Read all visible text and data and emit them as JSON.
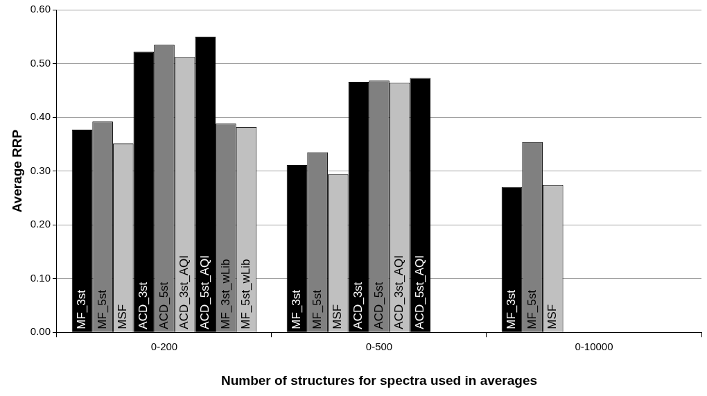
{
  "chart_data": {
    "type": "bar",
    "xlabel": "Number of structures for spectra used in averages",
    "ylabel": "Average RRP",
    "categories": [
      "0-200",
      "0-500",
      "0-10000"
    ],
    "series": [
      {
        "name": "MF_3st",
        "color": "#000000",
        "values": [
          0.377,
          0.311,
          0.27
        ]
      },
      {
        "name": "MF_5st",
        "color": "#808080",
        "values": [
          0.392,
          0.335,
          0.354
        ]
      },
      {
        "name": "MSF",
        "color": "#c0c0c0",
        "values": [
          0.351,
          0.294,
          0.274
        ]
      },
      {
        "name": "ACD_3st",
        "color": "#000000",
        "values": [
          0.522,
          0.466,
          null
        ]
      },
      {
        "name": "ACD_5st",
        "color": "#808080",
        "values": [
          0.535,
          0.468,
          null
        ]
      },
      {
        "name": "ACD_3st_AQI",
        "color": "#c0c0c0",
        "values": [
          0.512,
          0.464,
          null
        ]
      },
      {
        "name": "ACD_5st_AQI",
        "color": "#000000",
        "values": [
          0.55,
          0.473,
          null
        ]
      },
      {
        "name": "MF_3st_wLib",
        "color": "#808080",
        "values": [
          0.388,
          null,
          null
        ]
      },
      {
        "name": "MF_5st_wLib",
        "color": "#c0c0c0",
        "values": [
          0.382,
          null,
          null
        ]
      }
    ],
    "ylim": [
      0,
      0.6
    ],
    "yticks": [
      {
        "value": 0,
        "label": "0.00"
      },
      {
        "value": 0.1,
        "label": "0.10"
      },
      {
        "value": 0.2,
        "label": "0.20"
      },
      {
        "value": 0.3,
        "label": "0.30"
      },
      {
        "value": 0.4,
        "label": "0.40"
      },
      {
        "value": 0.5,
        "label": "0.50"
      },
      {
        "value": 0.6,
        "label": "0.60"
      }
    ],
    "grid": "y",
    "legend": false
  }
}
